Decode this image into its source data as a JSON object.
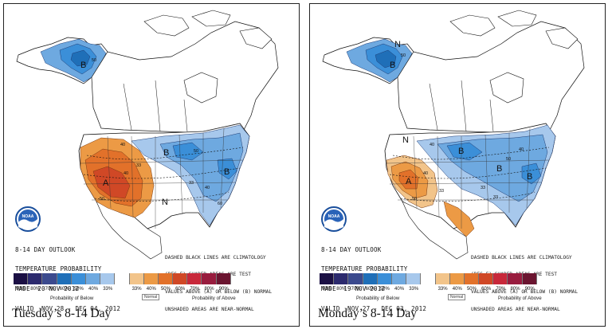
{
  "colors": {
    "below": [
      "#1b1044",
      "#2c2a6e",
      "#3b4a8e",
      "#1f6fb8",
      "#3b8fd8",
      "#6ea9e0",
      "#a7c8ec"
    ],
    "normal": "#ffffff",
    "above": [
      "#f2c48a",
      "#ec9a45",
      "#e2712a",
      "#d04826",
      "#c8283a",
      "#981c3e",
      "#6b1530"
    ],
    "outline": "#111111"
  },
  "panels": [
    {
      "outlook_lines": [
        "8-14 DAY OUTLOOK",
        "TEMPERATURE PROBABILITY",
        "MADE  20 NOV 2012",
        "VALID  NOV 28 - DEC 04, 2012"
      ],
      "note_lines": [
        "DASHED BLACK LINES ARE CLIMATOLOGY",
        "(DEG F) SHADED AREAS ARE TEST",
        "VALUES ABOVE (A) OR BELOW (B) NORMAL",
        "UNSHADED AREAS ARE NEAR-NORMAL"
      ],
      "legend": {
        "below_pcts": [
          "90%",
          "80%",
          "70%",
          "60%",
          "50%",
          "40%",
          "33%"
        ],
        "above_pcts": [
          "33%",
          "40%",
          "50%",
          "60%",
          "70%",
          "80%",
          "90%"
        ],
        "below_label": "Probability of Below",
        "normal_label": "Normal",
        "above_label": "Probability of Above"
      },
      "caption": "Tuesday’s 8-14 Day",
      "region_letters": [
        "B",
        "B",
        "B",
        "A",
        "N"
      ],
      "contour_labels": [
        "50",
        "40",
        "33",
        "40",
        "50",
        "33",
        "40",
        "50",
        "60"
      ]
    },
    {
      "outlook_lines": [
        "8-14 DAY OUTLOOK",
        "TEMPERATURE PROBABILITY",
        "MADE  19 NOV 2012",
        "VALID  NOV 27 - DEC 03, 2012"
      ],
      "note_lines": [
        "DASHED BLACK LINES ARE CLIMATOLOGY",
        "(DEG F) SHADED AREAS ARE TEST",
        "VALUES ABOVE (A) OR BELOW (B) NORMAL",
        "UNSHADED AREAS ARE NEAR-NORMAL"
      ],
      "legend": {
        "below_pcts": [
          "90%",
          "80%",
          "70%",
          "60%",
          "50%",
          "40%",
          "33%"
        ],
        "above_pcts": [
          "33%",
          "40%",
          "50%",
          "60%",
          "70%",
          "80%",
          "90%"
        ],
        "below_label": "Probability of Below",
        "normal_label": "Normal",
        "above_label": "Probability of Above"
      },
      "caption": "Monday’s 8-14 Day",
      "region_letters": [
        "N",
        "B",
        "B",
        "B",
        "A",
        "N",
        "B"
      ],
      "contour_labels": [
        "50",
        "40",
        "33",
        "40",
        "50",
        "33",
        "40",
        "50",
        "33"
      ]
    }
  ]
}
